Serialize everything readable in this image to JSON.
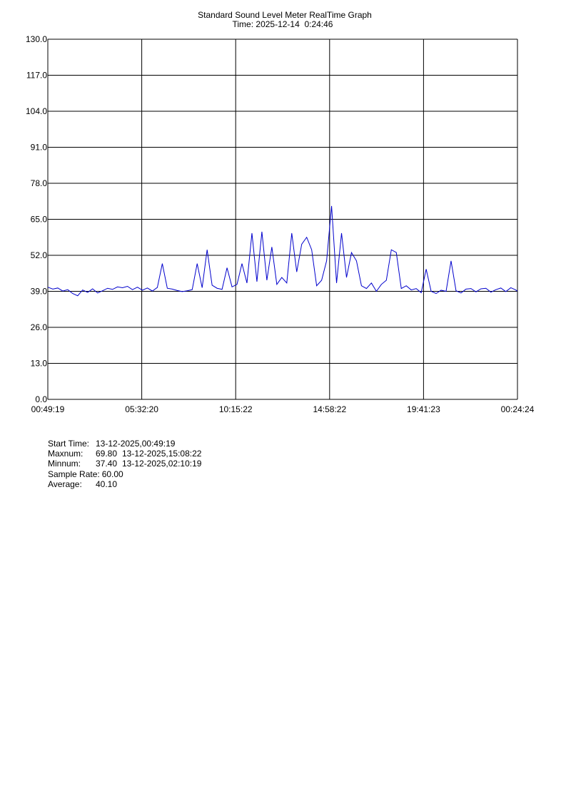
{
  "chart_data": {
    "type": "line",
    "title": "Standard Sound Level Meter RealTime Graph",
    "subtitle": "Time: 2025-12-14  0:24:46",
    "x": [
      0,
      0.25,
      0.5,
      0.75,
      1,
      1.25,
      1.5,
      1.75,
      2,
      2.25,
      2.5,
      2.75,
      3,
      3.25,
      3.5,
      3.75,
      4,
      4.25,
      4.5,
      4.75,
      5,
      5.25,
      5.5,
      5.75,
      6,
      6.25,
      6.5,
      6.75,
      7,
      7.25,
      7.5,
      7.75,
      8,
      8.25,
      8.5,
      8.75,
      9,
      9.25,
      9.5,
      9.75,
      10,
      10.25,
      10.5,
      10.75,
      11,
      11.25,
      11.5,
      11.75,
      12,
      12.25,
      12.5,
      12.75,
      13,
      13.25,
      13.5,
      13.75,
      14,
      14.25,
      14.5,
      14.75,
      15,
      15.25,
      15.5,
      15.75,
      16,
      16.25,
      16.5,
      16.75,
      17,
      17.25,
      17.5,
      17.75,
      18,
      18.25,
      18.5,
      18.75,
      19,
      19.25,
      19.5,
      19.75,
      20,
      20.25,
      20.5,
      20.75,
      21,
      21.25,
      21.5,
      21.75,
      22,
      22.25,
      22.5,
      22.75,
      23,
      23.25,
      23.5,
      23.5847
    ],
    "series": [
      {
        "color": "#0000cc",
        "values": [
          40.5,
          39.8,
          40.2,
          39.1,
          39.6,
          38.2,
          37.4,
          39.5,
          38.6,
          39.9,
          38.4,
          39.2,
          40.1,
          39.7,
          40.6,
          40.3,
          40.8,
          39.6,
          40.5,
          39.4,
          40.2,
          39.1,
          40.4,
          49.0,
          40.1,
          39.8,
          39.3,
          38.9,
          39.2,
          39.6,
          49.0,
          40.3,
          54.0,
          41.2,
          40.1,
          39.7,
          47.5,
          40.6,
          41.5,
          49.0,
          42.0,
          60.0,
          42.5,
          60.5,
          43.0,
          55.0,
          41.5,
          44.0,
          42.0,
          60.0,
          46.0,
          56.0,
          58.5,
          54.0,
          41.0,
          43.0,
          50.0,
          69.8,
          42.0,
          60.0,
          44.0,
          53.0,
          50.0,
          41.0,
          40.0,
          42.0,
          39.0,
          41.5,
          43.0,
          54.0,
          53.0,
          40.0,
          41.0,
          39.5,
          40.0,
          38.5,
          47.0,
          39.0,
          38.2,
          39.4,
          39.0,
          50.0,
          39.2,
          38.4,
          39.8,
          40.0,
          38.8,
          39.9,
          40.1,
          38.7,
          39.6,
          40.2,
          38.9,
          40.3,
          39.5,
          39.0
        ]
      }
    ],
    "xlim": [
      0,
      23.5847
    ],
    "xticks": [
      {
        "value": 0,
        "label": "00:49:19"
      },
      {
        "value": 4.7169,
        "label": "05:32:20"
      },
      {
        "value": 9.4339,
        "label": "10:15:22"
      },
      {
        "value": 14.1508,
        "label": "14:58:22"
      },
      {
        "value": 18.8678,
        "label": "19:41:23"
      },
      {
        "value": 23.5847,
        "label": "00:24:24"
      }
    ],
    "ylim": [
      0,
      130
    ],
    "yticks": [
      {
        "value": 0,
        "label": "0.0"
      },
      {
        "value": 13,
        "label": "13.0"
      },
      {
        "value": 26,
        "label": "26.0"
      },
      {
        "value": 39,
        "label": "39.0"
      },
      {
        "value": 52,
        "label": "52.0"
      },
      {
        "value": 65,
        "label": "65.0"
      },
      {
        "value": 78,
        "label": "78.0"
      },
      {
        "value": 91,
        "label": "91.0"
      },
      {
        "value": 104,
        "label": "104.0"
      },
      {
        "value": 117,
        "label": "117.0"
      },
      {
        "value": 130,
        "label": "130.0"
      }
    ],
    "grid": true
  },
  "summary": [
    {
      "label": "Start Time:",
      "value": "13-12-2025,00:49:19"
    },
    {
      "label": "Maxnum:",
      "value": "69.80",
      "time": "13-12-2025,15:08:22"
    },
    {
      "label": "Minnum:",
      "value": "37.40",
      "time": "13-12-2025,02:10:19"
    },
    {
      "label": "Sample Rate:",
      "value": "60.00"
    },
    {
      "label": "Average:",
      "value": "40.10"
    }
  ]
}
